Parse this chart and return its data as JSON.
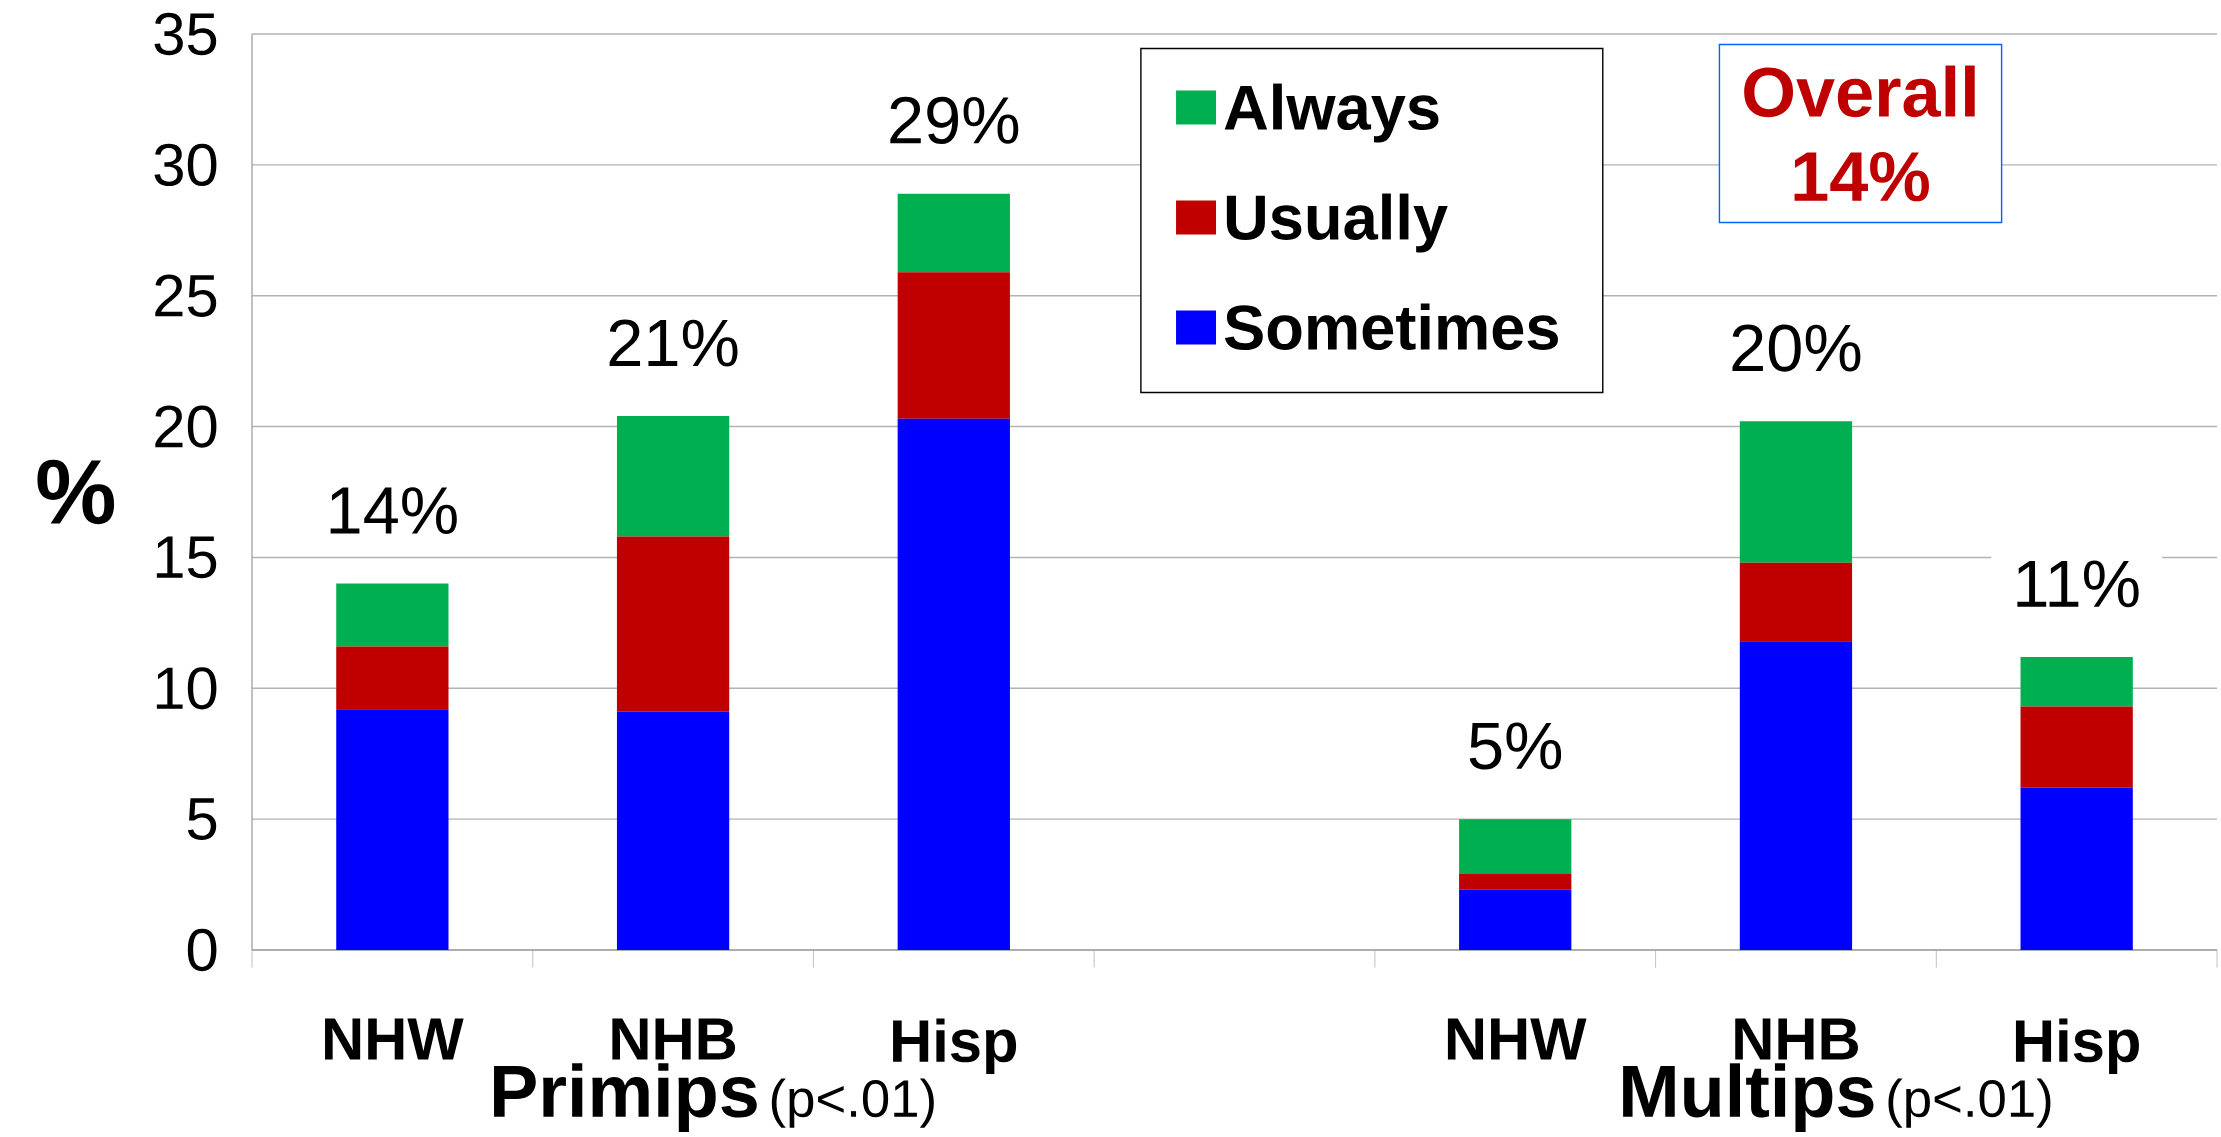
{
  "chart_data": {
    "type": "bar",
    "stacked": true,
    "ylabel": "%",
    "categories": [
      "NHW",
      "NHB",
      "Hisp",
      null,
      "NHW",
      "NHB",
      "Hisp"
    ],
    "series": [
      {
        "name": "Sometimes",
        "color": "#0000ff",
        "values": [
          9.2,
          9.1,
          20.3,
          null,
          2.3,
          11.8,
          6.2
        ]
      },
      {
        "name": "Usually",
        "color": "#c00000",
        "values": [
          2.4,
          6.7,
          5.6,
          null,
          0.6,
          3.0,
          3.1
        ]
      },
      {
        "name": "Always",
        "color": "#00b050",
        "values": [
          2.4,
          4.6,
          3.0,
          null,
          2.1,
          5.4,
          1.9
        ]
      }
    ],
    "totals": [
      "14%",
      "21%",
      "29%",
      null,
      "5%",
      "20%",
      "11%"
    ],
    "ylim": [
      0,
      35
    ],
    "yticks": [
      0,
      5,
      10,
      15,
      20,
      25,
      30,
      35
    ],
    "grid": "y",
    "legend": "top",
    "annotations": [
      "Primips",
      "(p<.01)",
      "Multips",
      "(p<.01)",
      "Overall 14%"
    ]
  }
}
